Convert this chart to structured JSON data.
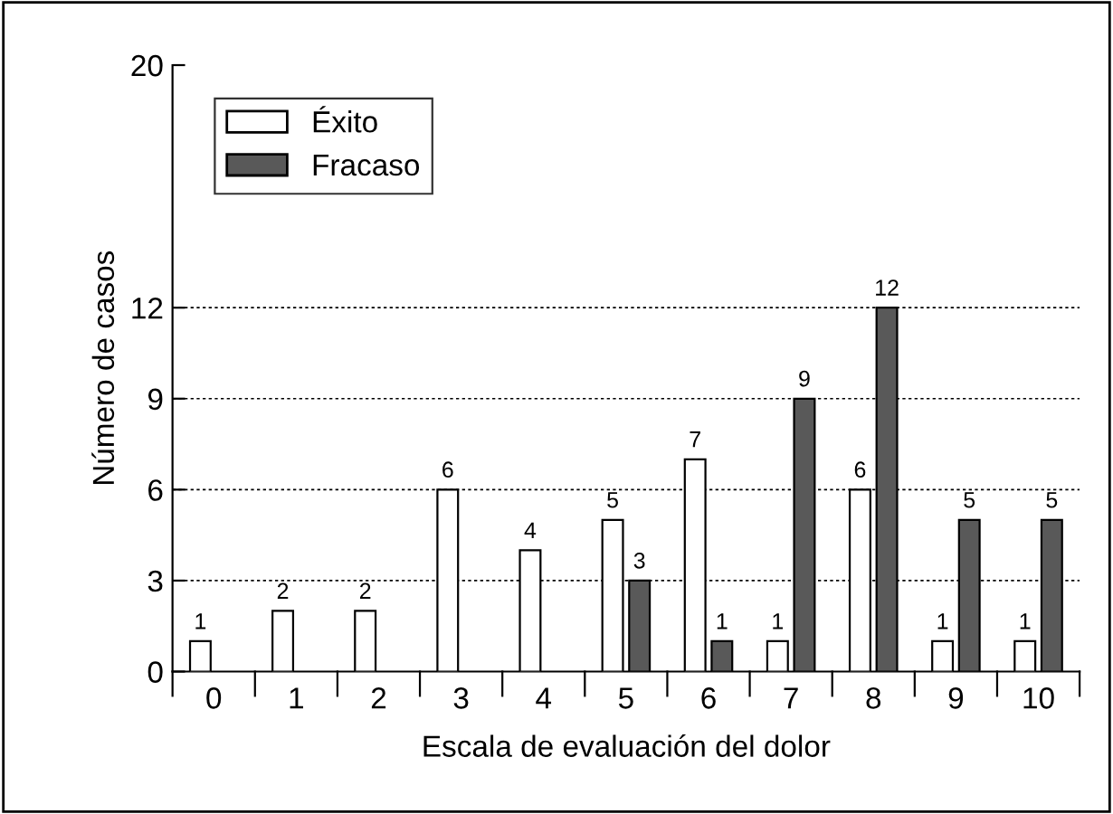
{
  "chart_data": {
    "type": "bar",
    "xlabel": "Escala de evaluación del dolor",
    "ylabel": "Número de casos",
    "categories": [
      "0",
      "1",
      "2",
      "3",
      "4",
      "5",
      "6",
      "7",
      "8",
      "9",
      "10"
    ],
    "series": [
      {
        "name": "Éxito",
        "color": "#ffffff",
        "values": [
          1,
          2,
          2,
          6,
          4,
          5,
          7,
          1,
          6,
          1,
          1
        ]
      },
      {
        "name": "Fracaso",
        "color": "#595959",
        "values": [
          null,
          null,
          null,
          null,
          null,
          3,
          1,
          9,
          12,
          5,
          5
        ]
      }
    ],
    "ylim": [
      0,
      20
    ],
    "yticks": [
      0,
      3,
      6,
      9,
      12,
      20
    ],
    "grid": "y",
    "legend": "top left",
    "data_labels": true
  }
}
